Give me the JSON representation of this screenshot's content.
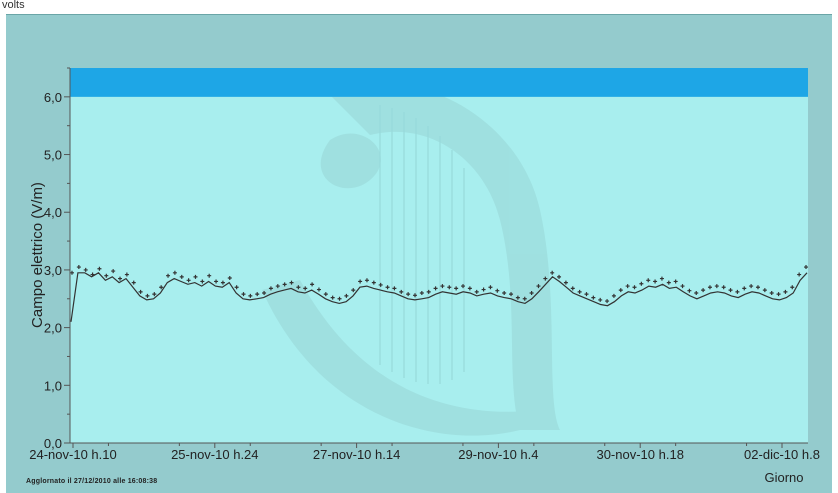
{
  "header": {
    "corner_text": "volts"
  },
  "footer": {
    "updated": "Agglornato il 27/12/2010 alle 16:08:38"
  },
  "colors": {
    "background": "#94cbcd",
    "plot_area": "#a8eeee",
    "limit_band": "#1ea6e6",
    "series": "#333333"
  },
  "chart_data": {
    "type": "line",
    "title": "",
    "xlabel": "Giorno",
    "ylabel": "Campo elettrico (V/m)",
    "ylim": [
      0,
      6.5
    ],
    "yticks": [
      "0,0",
      "1,0",
      "2,0",
      "3,0",
      "4,0",
      "5,0",
      "6,0"
    ],
    "xticks": [
      "24-nov-10 h.10",
      "25-nov-10 h.24",
      "27-nov-10 h.14",
      "29-nov-10 h.4",
      "30-nov-10 h.18",
      "02-dic-10 h.8"
    ],
    "limit_band": {
      "from": 6.0,
      "to": 6.5
    },
    "grid": false,
    "legend": "none",
    "series": [
      {
        "style": "line",
        "values": [
          2.1,
          2.95,
          2.95,
          2.88,
          2.95,
          2.82,
          2.88,
          2.78,
          2.85,
          2.7,
          2.55,
          2.48,
          2.5,
          2.6,
          2.78,
          2.85,
          2.8,
          2.75,
          2.78,
          2.72,
          2.8,
          2.72,
          2.7,
          2.78,
          2.6,
          2.5,
          2.48,
          2.5,
          2.52,
          2.58,
          2.62,
          2.65,
          2.68,
          2.62,
          2.6,
          2.65,
          2.58,
          2.5,
          2.45,
          2.42,
          2.45,
          2.55,
          2.7,
          2.72,
          2.68,
          2.65,
          2.62,
          2.6,
          2.55,
          2.5,
          2.48,
          2.5,
          2.52,
          2.58,
          2.62,
          2.6,
          2.58,
          2.62,
          2.6,
          2.55,
          2.58,
          2.6,
          2.55,
          2.52,
          2.5,
          2.45,
          2.42,
          2.5,
          2.62,
          2.75,
          2.88,
          2.8,
          2.7,
          2.6,
          2.55,
          2.5,
          2.45,
          2.4,
          2.38,
          2.45,
          2.55,
          2.62,
          2.6,
          2.65,
          2.72,
          2.7,
          2.75,
          2.68,
          2.7,
          2.62,
          2.55,
          2.5,
          2.55,
          2.6,
          2.62,
          2.6,
          2.55,
          2.52,
          2.58,
          2.62,
          2.6,
          2.55,
          2.5,
          2.48,
          2.52,
          2.6,
          2.82,
          2.95
        ]
      },
      {
        "style": "markers",
        "values": [
          2.95,
          3.05,
          3.0,
          2.92,
          3.02,
          2.9,
          2.98,
          2.85,
          2.92,
          2.78,
          2.62,
          2.55,
          2.58,
          2.7,
          2.9,
          2.95,
          2.88,
          2.82,
          2.88,
          2.8,
          2.9,
          2.8,
          2.78,
          2.86,
          2.7,
          2.58,
          2.55,
          2.58,
          2.6,
          2.68,
          2.72,
          2.75,
          2.78,
          2.7,
          2.68,
          2.75,
          2.66,
          2.58,
          2.52,
          2.5,
          2.55,
          2.65,
          2.8,
          2.82,
          2.78,
          2.74,
          2.7,
          2.68,
          2.62,
          2.58,
          2.56,
          2.6,
          2.62,
          2.68,
          2.72,
          2.7,
          2.68,
          2.72,
          2.68,
          2.62,
          2.66,
          2.7,
          2.64,
          2.6,
          2.58,
          2.52,
          2.5,
          2.6,
          2.72,
          2.85,
          2.95,
          2.88,
          2.78,
          2.68,
          2.62,
          2.58,
          2.52,
          2.48,
          2.46,
          2.55,
          2.65,
          2.72,
          2.7,
          2.76,
          2.82,
          2.8,
          2.85,
          2.78,
          2.8,
          2.72,
          2.64,
          2.6,
          2.65,
          2.7,
          2.72,
          2.7,
          2.65,
          2.62,
          2.68,
          2.72,
          2.7,
          2.65,
          2.6,
          2.58,
          2.62,
          2.7,
          2.92,
          3.05
        ]
      }
    ]
  }
}
